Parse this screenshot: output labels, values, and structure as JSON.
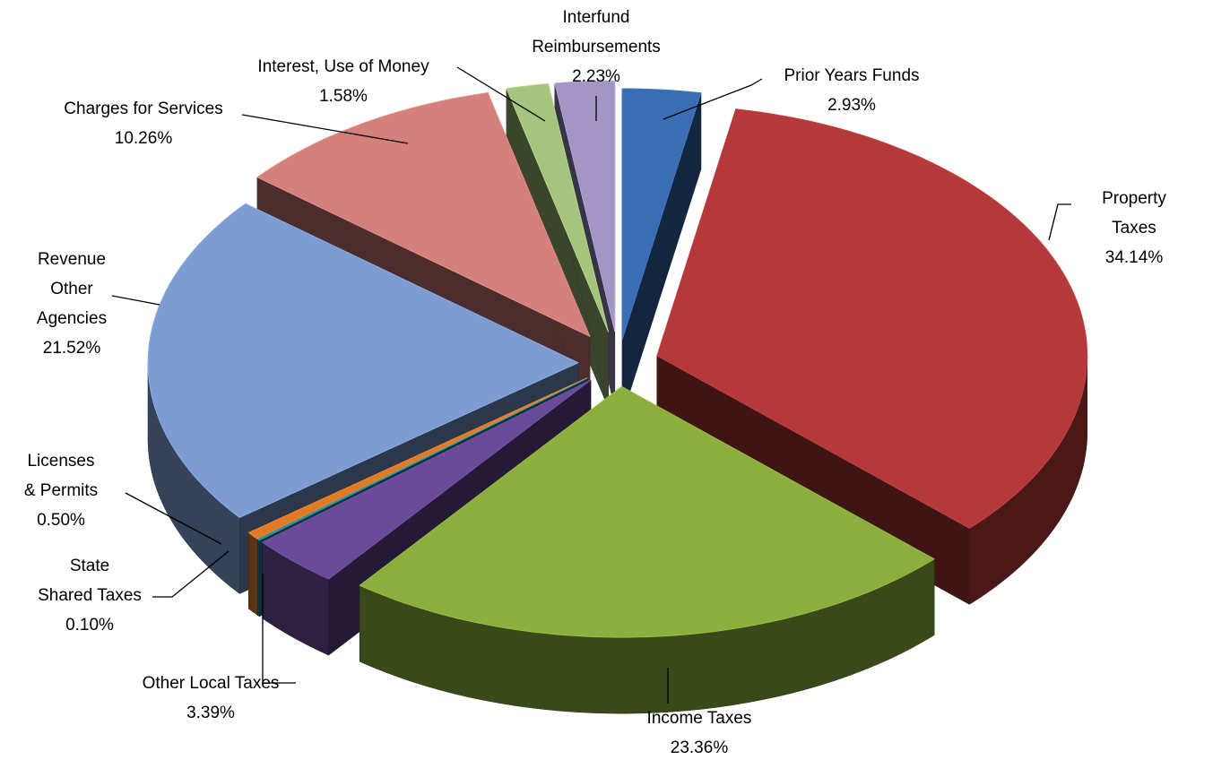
{
  "chart_data": {
    "type": "pie",
    "categories": [
      "Prior Years Funds",
      "Property Taxes",
      "Income Taxes",
      "Other Local Taxes",
      "State\nShared Taxes",
      "Licenses\n& Permits",
      "Revenue\nOther\nAgencies",
      "Charges for Services",
      "Interest, Use of Money",
      "Interfund\nReimbursements"
    ],
    "values": [
      2.93,
      34.14,
      23.36,
      3.39,
      0.1,
      0.5,
      21.52,
      10.26,
      1.58,
      2.23
    ],
    "value_labels": [
      "2.93%",
      "34.14%",
      "23.36%",
      "3.39%",
      "0.10%",
      "0.50%",
      "21.52%",
      "10.26%",
      "1.58%",
      "2.23%"
    ],
    "colors": [
      "#3a6db3",
      "#b3393a",
      "#8bae3e",
      "#6a4b99",
      "#2c8a9a",
      "#e07a27",
      "#7d9dd2",
      "#d4807d",
      "#a5c47e",
      "#a395c4"
    ]
  }
}
